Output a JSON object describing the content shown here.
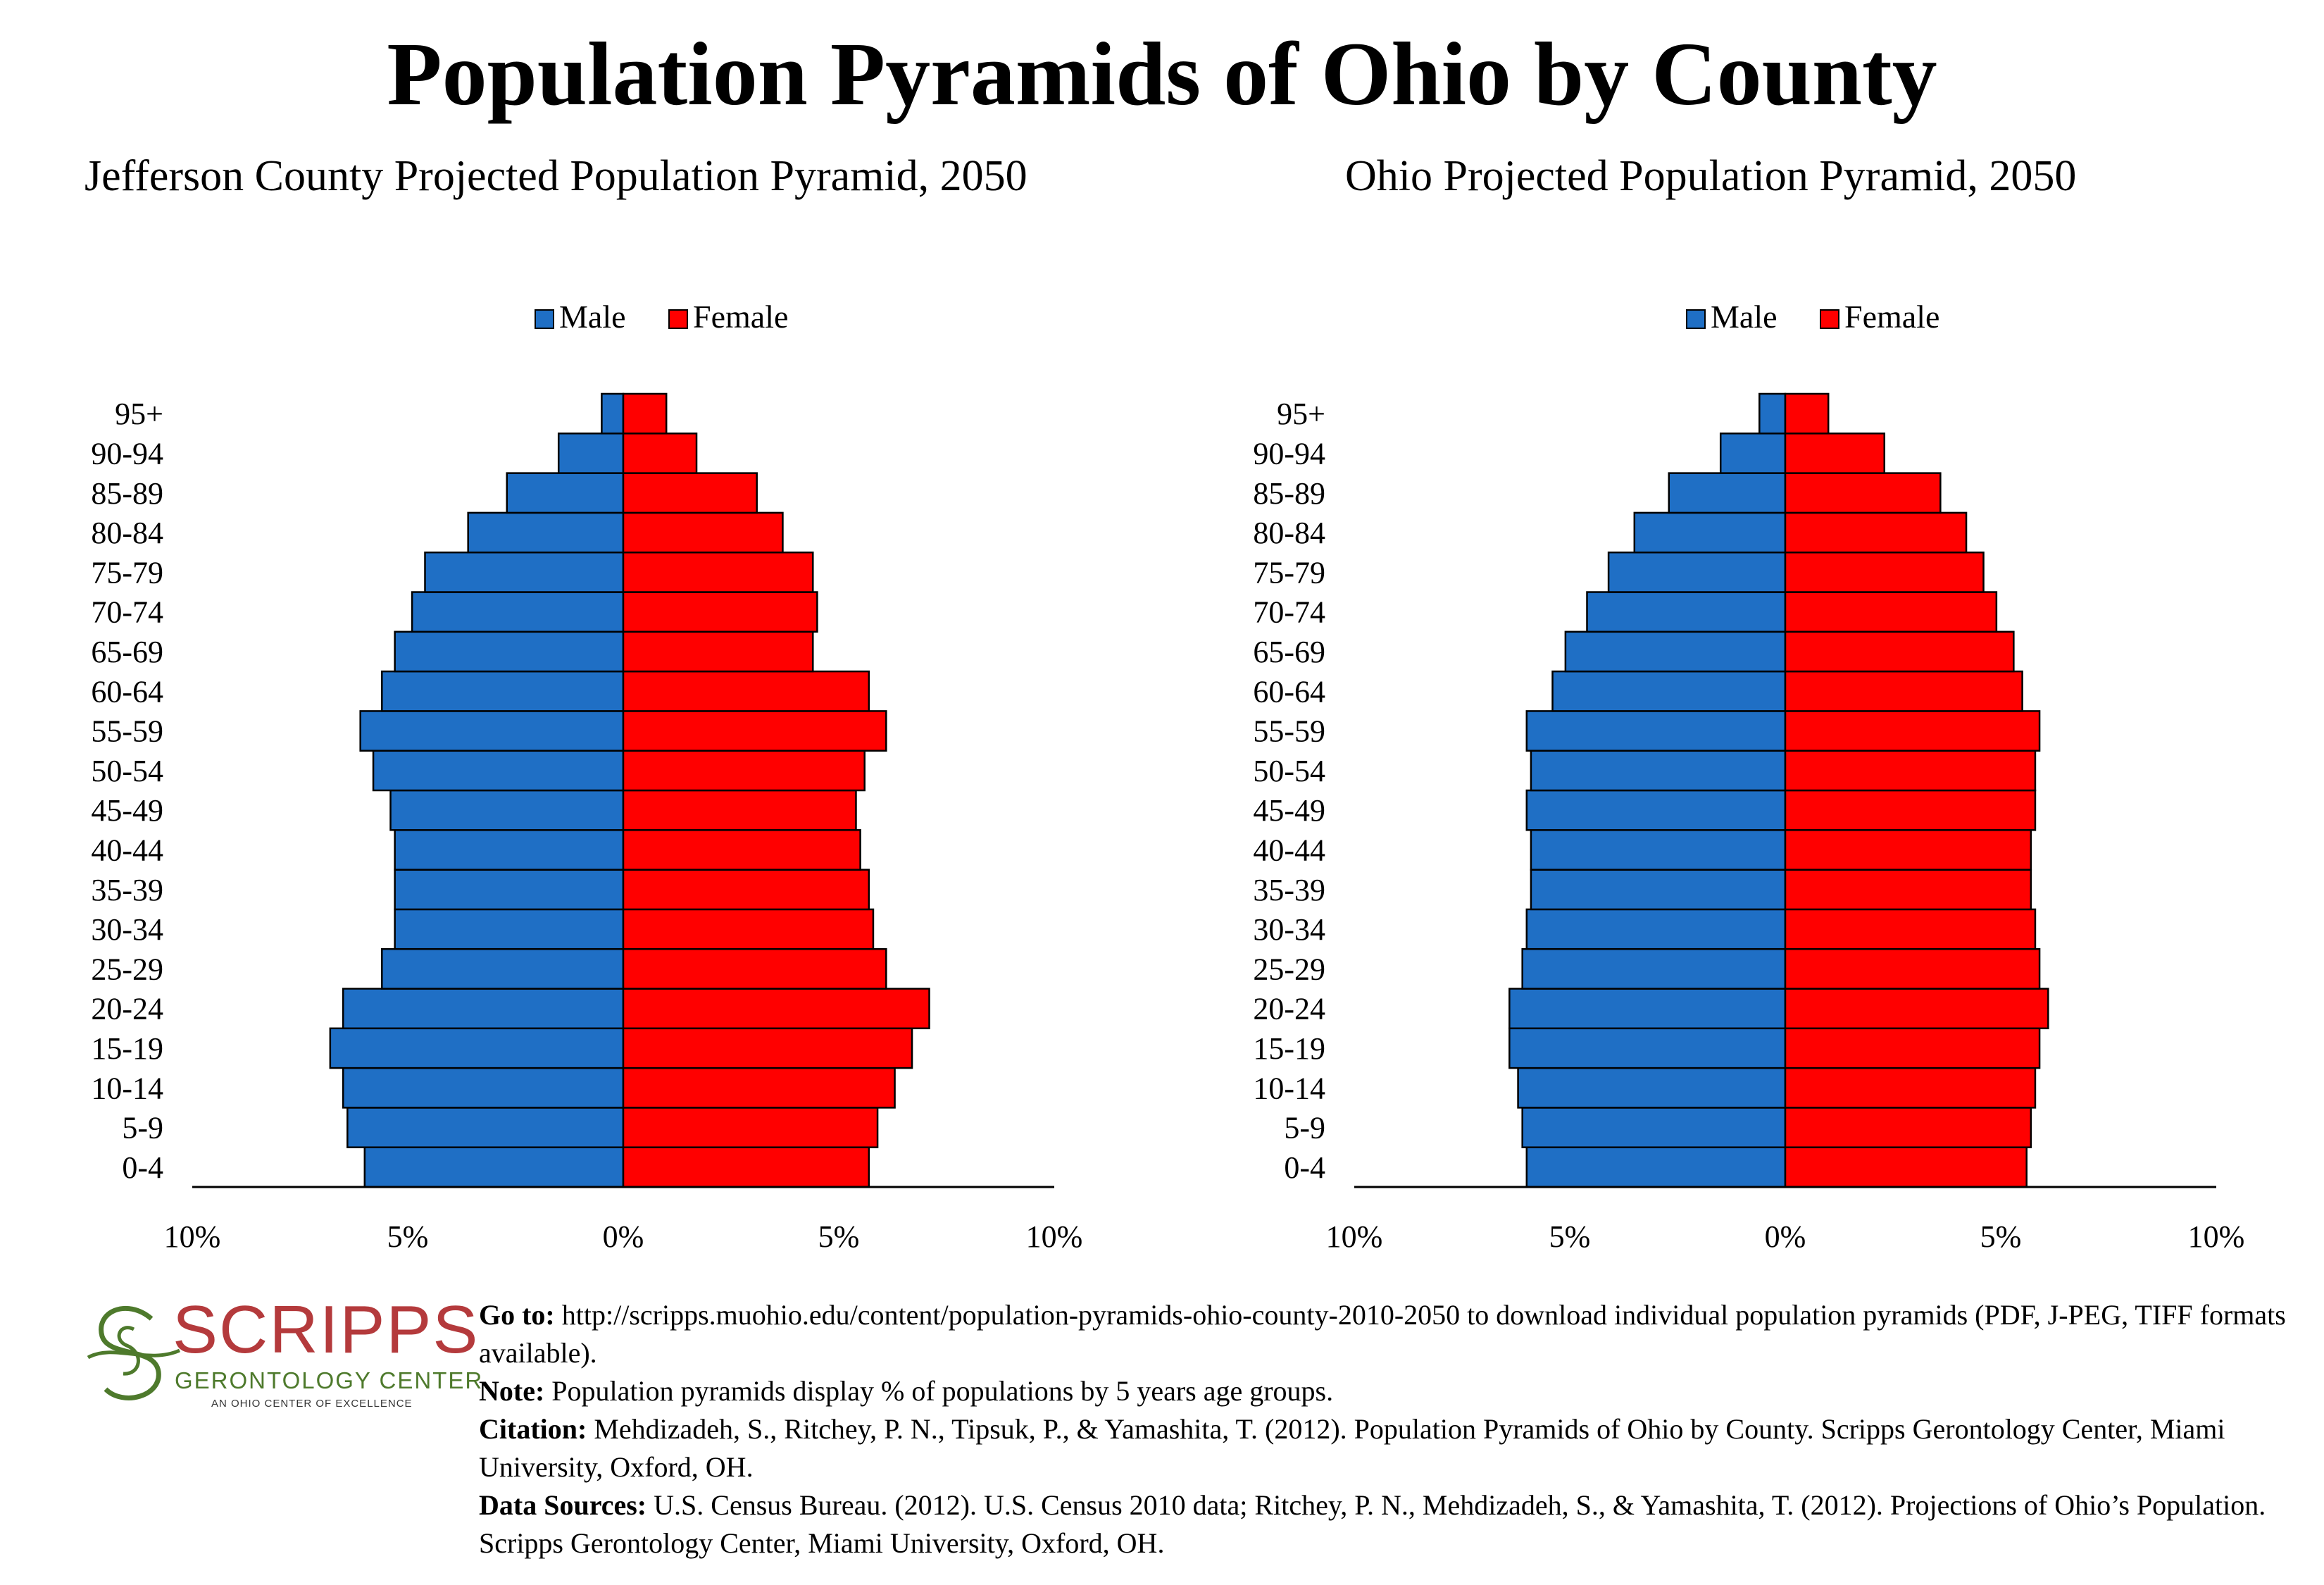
{
  "title": "Population Pyramids of Ohio by County",
  "legend": {
    "male": "Male",
    "female": "Female"
  },
  "colors": {
    "male": "#1f6fc5",
    "female": "#ff0000",
    "outline": "#000000"
  },
  "chart_data": [
    {
      "type": "bar",
      "orientation": "population-pyramid",
      "title": "Jefferson County Projected Population Pyramid, 2050",
      "categories": [
        "0-4",
        "5-9",
        "10-14",
        "15-19",
        "20-24",
        "25-29",
        "30-34",
        "35-39",
        "40-44",
        "45-49",
        "50-54",
        "55-59",
        "60-64",
        "65-69",
        "70-74",
        "75-79",
        "80-84",
        "85-89",
        "90-94",
        "95+"
      ],
      "series": [
        {
          "name": "Male",
          "values": [
            6.0,
            6.4,
            6.5,
            6.8,
            6.5,
            5.6,
            5.3,
            5.3,
            5.3,
            5.4,
            5.8,
            6.1,
            5.6,
            5.3,
            4.9,
            4.6,
            3.6,
            2.7,
            1.5,
            0.5
          ]
        },
        {
          "name": "Female",
          "values": [
            5.7,
            5.9,
            6.3,
            6.7,
            7.1,
            6.1,
            5.8,
            5.7,
            5.5,
            5.4,
            5.6,
            6.1,
            5.7,
            4.4,
            4.5,
            4.4,
            3.7,
            3.1,
            1.7,
            1.0
          ]
        }
      ],
      "xlim": [
        -10,
        10
      ],
      "x_ticks": [
        "10%",
        "5%",
        "0%",
        "5%",
        "10%"
      ],
      "legend_position": "top"
    },
    {
      "type": "bar",
      "orientation": "population-pyramid",
      "title": "Ohio Projected Population Pyramid, 2050",
      "categories": [
        "0-4",
        "5-9",
        "10-14",
        "15-19",
        "20-24",
        "25-29",
        "30-34",
        "35-39",
        "40-44",
        "45-49",
        "50-54",
        "55-59",
        "60-64",
        "65-69",
        "70-74",
        "75-79",
        "80-84",
        "85-89",
        "90-94",
        "95+"
      ],
      "series": [
        {
          "name": "Male",
          "values": [
            6.0,
            6.1,
            6.2,
            6.4,
            6.4,
            6.1,
            6.0,
            5.9,
            5.9,
            6.0,
            5.9,
            6.0,
            5.4,
            5.1,
            4.6,
            4.1,
            3.5,
            2.7,
            1.5,
            0.6
          ]
        },
        {
          "name": "Female",
          "values": [
            5.6,
            5.7,
            5.8,
            5.9,
            6.1,
            5.9,
            5.8,
            5.7,
            5.7,
            5.8,
            5.8,
            5.9,
            5.5,
            5.3,
            4.9,
            4.6,
            4.2,
            3.6,
            2.3,
            1.0
          ]
        }
      ],
      "xlim": [
        -10,
        10
      ],
      "x_ticks": [
        "10%",
        "5%",
        "0%",
        "5%",
        "10%"
      ],
      "legend_position": "top"
    }
  ],
  "footer": {
    "logo": {
      "word": "SCRIPPS",
      "sub": "GERONTOLOGY CENTER",
      "tag": "AN OHIO CENTER OF EXCELLENCE"
    },
    "goto_label": "Go to:",
    "goto_text": "http://scripps.muohio.edu/content/population-pyramids-ohio-county-2010-2050 to download individual population pyramids (PDF, J-PEG, TIFF formats available).",
    "note_label": "Note:",
    "note_text": "Population pyramids display % of populations by 5 years age groups.",
    "citation_label": "Citation:",
    "citation_text": "Mehdizadeh, S., Ritchey, P. N., Tipsuk, P., & Yamashita, T. (2012). Population Pyramids of Ohio by County. Scripps Gerontology Center, Miami University, Oxford, OH.",
    "sources_label": "Data Sources:",
    "sources_text": "U.S. Census Bureau. (2012). U.S. Census 2010 data; Ritchey, P. N., Mehdizadeh, S., & Yamashita, T. (2012). Projections of Ohio’s Population. Scripps Gerontology Center, Miami University, Oxford, OH."
  }
}
